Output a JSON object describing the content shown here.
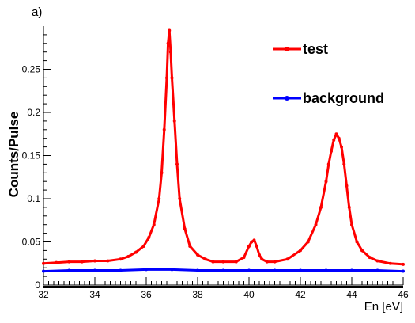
{
  "panel_label": "a)",
  "chart_data": {
    "type": "line",
    "title": "",
    "xlabel": "En [eV]",
    "ylabel": "Counts/Pulse",
    "xlim": [
      32,
      46
    ],
    "ylim": [
      0,
      0.3
    ],
    "x_ticks": [
      32,
      34,
      36,
      38,
      40,
      42,
      44,
      46
    ],
    "y_ticks": [
      0,
      0.05,
      0.1,
      0.15,
      0.2,
      0.25
    ],
    "x_tick_labels": [
      "32",
      "34",
      "36",
      "38",
      "40",
      "42",
      "44",
      "46"
    ],
    "y_tick_labels": [
      "0",
      "0.05",
      "0.1",
      "0.15",
      "0.2",
      "0.25"
    ],
    "legend_position": "top-right",
    "grid": false,
    "series": [
      {
        "name": "test",
        "color": "#ff0000",
        "marker": "circle",
        "x": [
          32.0,
          32.5,
          33.0,
          33.5,
          34.0,
          34.5,
          35.0,
          35.3,
          35.6,
          35.9,
          36.1,
          36.3,
          36.5,
          36.6,
          36.7,
          36.8,
          36.85,
          36.9,
          36.95,
          37.0,
          37.1,
          37.2,
          37.3,
          37.5,
          37.7,
          38.0,
          38.3,
          38.6,
          39.0,
          39.5,
          39.8,
          40.0,
          40.1,
          40.2,
          40.3,
          40.4,
          40.5,
          40.7,
          41.0,
          41.5,
          42.0,
          42.3,
          42.6,
          42.8,
          43.0,
          43.1,
          43.2,
          43.3,
          43.4,
          43.5,
          43.6,
          43.7,
          43.8,
          43.9,
          44.0,
          44.2,
          44.4,
          44.7,
          45.0,
          45.5,
          46.0
        ],
        "y": [
          0.025,
          0.026,
          0.027,
          0.027,
          0.028,
          0.028,
          0.03,
          0.033,
          0.038,
          0.045,
          0.055,
          0.07,
          0.1,
          0.13,
          0.18,
          0.24,
          0.28,
          0.295,
          0.27,
          0.24,
          0.19,
          0.14,
          0.1,
          0.065,
          0.045,
          0.035,
          0.03,
          0.027,
          0.027,
          0.027,
          0.032,
          0.045,
          0.05,
          0.052,
          0.045,
          0.035,
          0.03,
          0.027,
          0.027,
          0.03,
          0.04,
          0.05,
          0.07,
          0.09,
          0.12,
          0.14,
          0.155,
          0.168,
          0.175,
          0.17,
          0.16,
          0.14,
          0.115,
          0.09,
          0.07,
          0.05,
          0.04,
          0.032,
          0.028,
          0.025,
          0.024
        ]
      },
      {
        "name": "background",
        "color": "#0000ff",
        "marker": "circle",
        "x": [
          32.0,
          33.0,
          34.0,
          35.0,
          36.0,
          37.0,
          38.0,
          39.0,
          40.0,
          41.0,
          42.0,
          43.0,
          44.0,
          45.0,
          46.0
        ],
        "y": [
          0.016,
          0.017,
          0.017,
          0.017,
          0.018,
          0.018,
          0.017,
          0.017,
          0.017,
          0.017,
          0.017,
          0.017,
          0.017,
          0.017,
          0.016
        ]
      }
    ]
  }
}
